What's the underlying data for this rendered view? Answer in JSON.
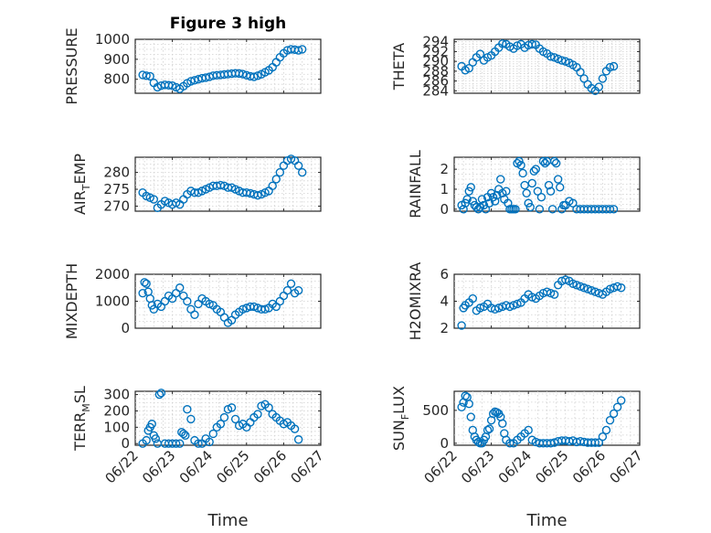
{
  "chart_data": [
    {
      "type": "scatter",
      "title": "Figure 3 high",
      "ylabel": "PRESSURE",
      "xlabel": "",
      "xlim": [
        0,
        5
      ],
      "ylim": [
        730,
        1000
      ],
      "yticks": [
        800,
        900,
        1000
      ],
      "yticklabels": [
        "800",
        "900",
        "1000"
      ],
      "minor": true,
      "series": [
        {
          "x": [
            0.2,
            0.3,
            0.4,
            0.5,
            0.6,
            0.7,
            0.8,
            0.9,
            1.0,
            1.1,
            1.2,
            1.3,
            1.4,
            1.5,
            1.6,
            1.7,
            1.8,
            1.9,
            2.0,
            2.1,
            2.2,
            2.3,
            2.4,
            2.5,
            2.6,
            2.7,
            2.8,
            2.9,
            3.0,
            3.1,
            3.2,
            3.3,
            3.4,
            3.5,
            3.6,
            3.7,
            3.8,
            3.9,
            4.0,
            4.1,
            4.2,
            4.3,
            4.4,
            4.5
          ],
          "y": [
            822,
            818,
            815,
            782,
            760,
            768,
            772,
            770,
            768,
            760,
            752,
            765,
            780,
            790,
            795,
            800,
            805,
            808,
            812,
            818,
            820,
            822,
            824,
            826,
            828,
            830,
            829,
            826,
            820,
            815,
            812,
            818,
            825,
            835,
            845,
            860,
            885,
            910,
            930,
            945,
            950,
            948,
            945,
            950
          ]
        }
      ]
    },
    {
      "type": "scatter",
      "ylabel": "THETA",
      "xlabel": "",
      "xlim": [
        0,
        5
      ],
      "ylim": [
        283.5,
        294.5
      ],
      "yticks": [
        284,
        286,
        288,
        290,
        292,
        294
      ],
      "yticklabels": [
        "284",
        "286",
        "288",
        "290",
        "292",
        "294"
      ],
      "minor": true,
      "series": [
        {
          "x": [
            0.2,
            0.3,
            0.4,
            0.5,
            0.6,
            0.7,
            0.8,
            0.9,
            1.0,
            1.1,
            1.2,
            1.3,
            1.4,
            1.5,
            1.6,
            1.7,
            1.8,
            1.9,
            2.0,
            2.1,
            2.2,
            2.3,
            2.4,
            2.5,
            2.6,
            2.7,
            2.8,
            2.9,
            3.0,
            3.1,
            3.2,
            3.3,
            3.4,
            3.5,
            3.6,
            3.7,
            3.8,
            3.9,
            4.0,
            4.1,
            4.2,
            4.3
          ],
          "y": [
            289.0,
            288.2,
            288.6,
            289.8,
            290.8,
            291.5,
            290.2,
            290.8,
            291.2,
            292.0,
            292.8,
            293.6,
            293.5,
            293.0,
            292.6,
            293.2,
            293.5,
            292.8,
            293.3,
            293.5,
            293.4,
            292.6,
            292.0,
            291.6,
            291.0,
            290.8,
            290.5,
            290.2,
            290.0,
            289.7,
            289.3,
            288.8,
            287.8,
            286.5,
            285.3,
            284.5,
            284.0,
            284.8,
            286.5,
            288.0,
            288.8,
            289.0
          ]
        }
      ]
    },
    {
      "type": "scatter",
      "ylabel": "AIR_TEMP",
      "xlabel": "",
      "xlim": [
        0,
        5
      ],
      "ylim": [
        268.5,
        284.5
      ],
      "yticks": [
        270,
        275,
        280
      ],
      "yticklabels": [
        "270",
        "275",
        "280"
      ],
      "minor": true,
      "series": [
        {
          "x": [
            0.2,
            0.3,
            0.4,
            0.5,
            0.6,
            0.7,
            0.8,
            0.9,
            1.0,
            1.1,
            1.2,
            1.3,
            1.4,
            1.5,
            1.6,
            1.7,
            1.8,
            1.9,
            2.0,
            2.1,
            2.2,
            2.3,
            2.4,
            2.5,
            2.6,
            2.7,
            2.8,
            2.9,
            3.0,
            3.1,
            3.2,
            3.3,
            3.4,
            3.5,
            3.6,
            3.7,
            3.8,
            3.9,
            4.0,
            4.1,
            4.2,
            4.3,
            4.4,
            4.5
          ],
          "y": [
            274.0,
            273.0,
            272.5,
            272.0,
            269.5,
            270.5,
            271.5,
            271.0,
            270.5,
            271.0,
            270.5,
            272.0,
            273.5,
            274.5,
            274.0,
            274.0,
            274.5,
            275.0,
            275.5,
            276.0,
            276.0,
            276.2,
            276.0,
            275.5,
            275.5,
            275.0,
            274.5,
            274.0,
            274.0,
            273.8,
            273.5,
            273.2,
            273.5,
            274.0,
            274.5,
            276.0,
            278.0,
            280.0,
            282.0,
            283.5,
            284.0,
            283.5,
            282.0,
            280.0
          ]
        }
      ]
    },
    {
      "type": "scatter",
      "ylabel": "RAINFALL",
      "xlabel": "",
      "xlim": [
        0,
        5
      ],
      "ylim": [
        -0.1,
        2.6
      ],
      "yticks": [
        0,
        1,
        2
      ],
      "yticklabels": [
        "0",
        "1",
        "2"
      ],
      "minor": true,
      "series": [
        {
          "x": [
            0.2,
            0.25,
            0.3,
            0.35,
            0.4,
            0.45,
            0.5,
            0.55,
            0.6,
            0.65,
            0.7,
            0.75,
            0.8,
            0.85,
            0.9,
            0.95,
            1.0,
            1.05,
            1.1,
            1.15,
            1.2,
            1.25,
            1.3,
            1.35,
            1.4,
            1.45,
            1.5,
            1.55,
            1.6,
            1.65,
            1.7,
            1.75,
            1.8,
            1.85,
            1.9,
            1.95,
            2.0,
            2.05,
            2.1,
            2.15,
            2.2,
            2.25,
            2.3,
            2.35,
            2.4,
            2.45,
            2.5,
            2.55,
            2.6,
            2.65,
            2.7,
            2.75,
            2.8,
            2.85,
            2.9,
            2.95,
            3.0,
            3.1,
            3.2,
            3.3,
            3.4,
            3.5,
            3.6,
            3.7,
            3.8,
            3.9,
            4.0,
            4.1,
            4.2,
            4.3
          ],
          "y": [
            0.2,
            0.0,
            0.3,
            0.5,
            0.9,
            1.1,
            0.4,
            0.2,
            0.1,
            0.0,
            0.1,
            0.5,
            0.2,
            0.0,
            0.6,
            0.3,
            0.8,
            0.6,
            0.4,
            0.7,
            1.0,
            1.5,
            0.8,
            0.5,
            0.9,
            0.3,
            0.0,
            0.0,
            0.0,
            0.0,
            2.3,
            2.4,
            2.2,
            1.8,
            1.2,
            0.8,
            0.3,
            0.1,
            1.3,
            1.9,
            2.0,
            0.9,
            0.0,
            0.6,
            2.4,
            2.3,
            2.4,
            1.2,
            0.9,
            0.0,
            2.4,
            2.3,
            1.5,
            1.1,
            0.0,
            0.2,
            0.2,
            0.4,
            0.3,
            0.0,
            0.0,
            0.0,
            0.0,
            0.0,
            0.0,
            0.0,
            0.0,
            0.0,
            0.0,
            0.0
          ]
        }
      ]
    },
    {
      "type": "scatter",
      "ylabel": "MIXDEPTH",
      "xlabel": "",
      "xlim": [
        0,
        5
      ],
      "ylim": [
        0,
        2000
      ],
      "yticks": [
        0,
        1000,
        2000
      ],
      "yticklabels": [
        "0",
        "1000",
        "2000"
      ],
      "minor": true,
      "series": [
        {
          "x": [
            0.2,
            0.25,
            0.3,
            0.35,
            0.4,
            0.45,
            0.5,
            0.6,
            0.7,
            0.8,
            0.9,
            1.0,
            1.1,
            1.2,
            1.3,
            1.4,
            1.5,
            1.6,
            1.7,
            1.8,
            1.9,
            2.0,
            2.1,
            2.2,
            2.3,
            2.4,
            2.5,
            2.6,
            2.7,
            2.8,
            2.9,
            3.0,
            3.1,
            3.2,
            3.3,
            3.4,
            3.5,
            3.6,
            3.7,
            3.8,
            3.9,
            4.0,
            4.1,
            4.2,
            4.3,
            4.4
          ],
          "y": [
            1300,
            1700,
            1650,
            1350,
            1100,
            850,
            700,
            900,
            800,
            1000,
            1200,
            1100,
            1300,
            1500,
            1200,
            1000,
            700,
            500,
            900,
            1100,
            1000,
            900,
            850,
            700,
            600,
            400,
            200,
            300,
            500,
            600,
            700,
            750,
            800,
            800,
            750,
            700,
            700,
            750,
            900,
            800,
            1000,
            1200,
            1400,
            1650,
            1300,
            1400
          ]
        }
      ]
    },
    {
      "type": "scatter",
      "ylabel": "H2OMIXRA",
      "xlabel": "",
      "xlim": [
        0,
        5
      ],
      "ylim": [
        2,
        6
      ],
      "yticks": [
        2,
        4,
        6
      ],
      "yticklabels": [
        "2",
        "4",
        "6"
      ],
      "minor": true,
      "series": [
        {
          "x": [
            0.2,
            0.25,
            0.3,
            0.4,
            0.5,
            0.6,
            0.7,
            0.8,
            0.9,
            1.0,
            1.1,
            1.2,
            1.3,
            1.4,
            1.5,
            1.6,
            1.7,
            1.8,
            1.9,
            2.0,
            2.1,
            2.2,
            2.3,
            2.4,
            2.5,
            2.6,
            2.7,
            2.8,
            2.9,
            3.0,
            3.1,
            3.2,
            3.3,
            3.4,
            3.5,
            3.6,
            3.7,
            3.8,
            3.9,
            4.0,
            4.1,
            4.2,
            4.3,
            4.4,
            4.5
          ],
          "y": [
            2.2,
            3.5,
            3.7,
            3.9,
            4.2,
            3.3,
            3.5,
            3.6,
            3.8,
            3.5,
            3.4,
            3.5,
            3.6,
            3.7,
            3.6,
            3.7,
            3.8,
            3.9,
            4.2,
            4.5,
            4.3,
            4.2,
            4.4,
            4.6,
            4.7,
            4.6,
            4.5,
            5.2,
            5.5,
            5.6,
            5.5,
            5.3,
            5.2,
            5.1,
            5.0,
            4.9,
            4.8,
            4.7,
            4.6,
            4.5,
            4.7,
            4.9,
            5.0,
            5.1,
            5.0
          ]
        }
      ]
    },
    {
      "type": "scatter",
      "ylabel": "TERR_MSL",
      "xlabel": "Time",
      "xlim": [
        0,
        5
      ],
      "ylim": [
        -10,
        320
      ],
      "yticks": [
        0,
        100,
        200,
        300
      ],
      "yticklabels": [
        "0",
        "100",
        "200",
        "300"
      ],
      "xticks": [
        0,
        1,
        2,
        3,
        4,
        5
      ],
      "xticklabels": [
        "06/22",
        "06/23",
        "06/24",
        "06/25",
        "06/26",
        "06/27"
      ],
      "minor": true,
      "series": [
        {
          "x": [
            0.2,
            0.3,
            0.35,
            0.4,
            0.45,
            0.5,
            0.55,
            0.6,
            0.65,
            0.7,
            0.8,
            0.9,
            1.0,
            1.1,
            1.2,
            1.25,
            1.3,
            1.35,
            1.4,
            1.5,
            1.6,
            1.7,
            1.8,
            1.9,
            2.0,
            2.1,
            2.2,
            2.3,
            2.4,
            2.5,
            2.6,
            2.7,
            2.8,
            2.9,
            3.0,
            3.1,
            3.2,
            3.3,
            3.4,
            3.5,
            3.6,
            3.7,
            3.8,
            3.9,
            4.0,
            4.1,
            4.2,
            4.3,
            4.4
          ],
          "y": [
            0,
            20,
            80,
            100,
            120,
            50,
            30,
            0,
            300,
            310,
            0,
            0,
            0,
            0,
            0,
            70,
            60,
            50,
            210,
            150,
            20,
            0,
            0,
            30,
            10,
            60,
            100,
            120,
            160,
            210,
            220,
            150,
            110,
            120,
            100,
            130,
            160,
            180,
            230,
            240,
            220,
            180,
            160,
            140,
            120,
            130,
            110,
            90,
            25
          ]
        }
      ]
    },
    {
      "type": "scatter",
      "ylabel": "SUN_FLUX",
      "xlabel": "Time",
      "xlim": [
        0,
        5
      ],
      "ylim": [
        -30,
        790
      ],
      "yticks": [
        0,
        500
      ],
      "yticklabels": [
        "0",
        "500"
      ],
      "xticks": [
        0,
        1,
        2,
        3,
        4,
        5
      ],
      "xticklabels": [
        "06/22",
        "06/23",
        "06/24",
        "06/25",
        "06/26",
        "06/27"
      ],
      "minor": true,
      "series": [
        {
          "x": [
            0.2,
            0.25,
            0.3,
            0.35,
            0.4,
            0.45,
            0.5,
            0.55,
            0.6,
            0.65,
            0.7,
            0.75,
            0.8,
            0.85,
            0.9,
            0.95,
            1.0,
            1.05,
            1.1,
            1.15,
            1.2,
            1.25,
            1.3,
            1.35,
            1.4,
            1.5,
            1.6,
            1.7,
            1.8,
            1.9,
            2.0,
            2.1,
            2.2,
            2.3,
            2.4,
            2.5,
            2.6,
            2.7,
            2.8,
            2.9,
            3.0,
            3.1,
            3.2,
            3.3,
            3.4,
            3.5,
            3.6,
            3.7,
            3.8,
            3.9,
            4.0,
            4.1,
            4.2,
            4.3,
            4.4,
            4.5
          ],
          "y": [
            550,
            620,
            720,
            700,
            600,
            400,
            200,
            100,
            50,
            20,
            0,
            0,
            50,
            100,
            200,
            220,
            350,
            450,
            480,
            470,
            450,
            400,
            300,
            150,
            50,
            0,
            0,
            50,
            100,
            150,
            200,
            50,
            20,
            0,
            0,
            0,
            0,
            10,
            30,
            40,
            40,
            30,
            40,
            20,
            30,
            20,
            10,
            10,
            10,
            10,
            100,
            200,
            350,
            450,
            550,
            650
          ]
        }
      ]
    }
  ]
}
